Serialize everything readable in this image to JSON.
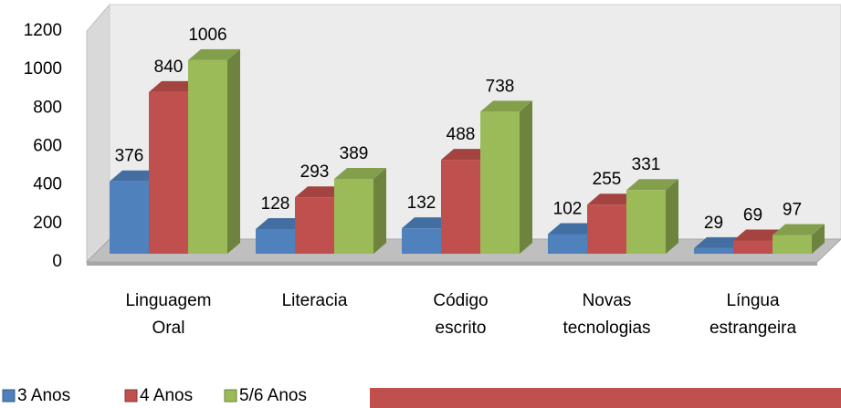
{
  "chart_data": {
    "type": "bar3d",
    "categories": [
      "Linguagem Oral",
      "Literacia",
      "Código escrito",
      "Novas tecnologias",
      "Língua estrangeira"
    ],
    "series": [
      {
        "name": "3 Anos",
        "color": "#4f81bd",
        "values": [
          376,
          128,
          132,
          102,
          29
        ]
      },
      {
        "name": "4 Anos",
        "color": "#c0504d",
        "values": [
          840,
          293,
          488,
          255,
          69
        ]
      },
      {
        "name": "5/6 Anos",
        "color": "#9bbb59",
        "values": [
          1006,
          389,
          738,
          331,
          97
        ]
      }
    ],
    "ylim": [
      0,
      1200
    ],
    "yticks": [
      0,
      200,
      400,
      600,
      800,
      1000,
      1200
    ],
    "grid": false,
    "legend": "bottom-left"
  }
}
